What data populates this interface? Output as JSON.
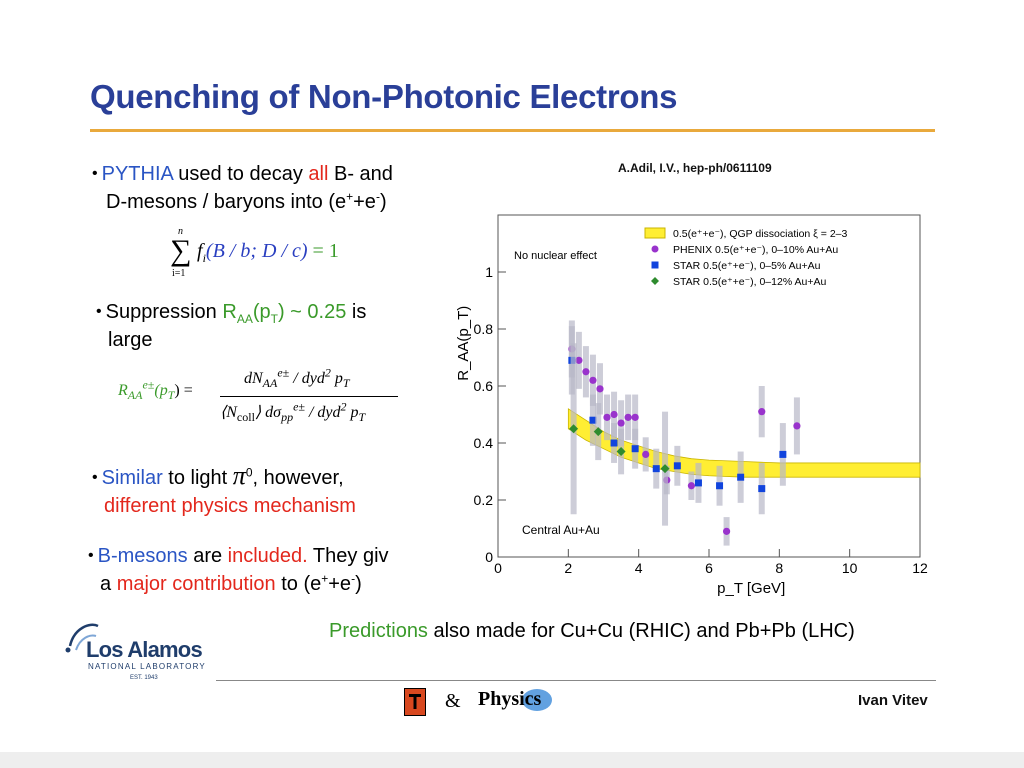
{
  "slide": {
    "title": "Quenching of Non-Photonic Electrons",
    "bullets": {
      "b1": {
        "part1": "PYTHIA",
        "part2": " used to decay ",
        "part3": "all",
        "part4": " B- and",
        "line2": "D-mesons / baryons into (e",
        "line2_sup1": "+",
        "line2_mid": "+e",
        "line2_sup2": "-",
        "line2_end": ")"
      },
      "b2": {
        "part1": "Suppression ",
        "raa": "R",
        "raa_sub": "AA",
        "pt_open": "(p",
        "pt_sub": "T",
        "pt_close": ") ~ 0.25",
        "part_end": " is",
        "line2": "large"
      },
      "b3": {
        "part1": "Similar",
        "part2": " to light ",
        "pi": "π",
        "pi_sup": "0",
        "part3": ", however,",
        "line2": "different physics mechanism"
      },
      "b4": {
        "part1": "B-mesons",
        "part2": " are ",
        "part3": "included.",
        "part4": " They giv",
        "line2a": "a ",
        "line2b": "major contribution",
        "line2c": " to (e",
        "sup1": "+",
        "mid": "+e",
        "sup2": "-",
        "end": ")"
      }
    },
    "eq1": {
      "sum_top": "n",
      "sum_sign": "∑",
      "sum_bottom": "i=1",
      "body": "f",
      "body_sub": "i",
      "args": "(B / b; D / c)",
      "rhs": " = 1"
    },
    "eq2": {
      "lhs": "R",
      "lhs_sub": "AA",
      "lhs_sup": "e±",
      "lhs_arg": "(p",
      "lhs_arg_sub": "T",
      "lhs_close": ") =",
      "num": "dN",
      "num_sub": "AA",
      "num_sup": "e±",
      "num_rest": " / dyd",
      "num_sq": "2",
      "num_p": " p",
      "num_p_sub": "T",
      "den_open": "⟨N",
      "den_sub": "coll",
      "den_close": "⟩ dσ",
      "den_sigma_sub": "pp",
      "den_sigma_sup": "e±",
      "den_rest": " / dyd",
      "den_sq": "2",
      "den_p": " p",
      "den_p_sub": "T"
    },
    "credit": "A.Adil, I.V., hep-ph/0611109",
    "predictions": {
      "part1": "Predictions",
      "part2": " also made for Cu+Cu (RHIC) and Pb+Pb (LHC)"
    },
    "author": "Ivan Vitev",
    "footer": {
      "lanl_name": "Los Alamos",
      "lanl_sub": "NATIONAL LABORATORY",
      "lanl_est": "EST. 1943",
      "amp": "&",
      "physics_logo": "Physics"
    }
  },
  "chart_data": {
    "type": "scatter",
    "xlabel": "p_T [GeV]",
    "ylabel": "R_AA(p_T)",
    "xlim": [
      0,
      12
    ],
    "ylim": [
      0,
      1.2
    ],
    "xticks": [
      0,
      2,
      4,
      6,
      8,
      10,
      12
    ],
    "yticks": [
      0,
      0.2,
      0.4,
      0.6,
      0.8,
      1
    ],
    "annotations": [
      "No nuclear effect",
      "Central Au+Au"
    ],
    "legend_position": "top-right",
    "series": [
      {
        "name": "0.5(e⁺+e⁻), QGP dissociation ξ = 2–3",
        "kind": "band",
        "color": "#ffee33",
        "x": [
          2.0,
          2.5,
          3.0,
          3.5,
          4.0,
          4.5,
          5.0,
          5.5,
          6.0,
          7.0,
          8.0,
          9.0,
          10.0,
          12.0
        ],
        "lower": [
          0.45,
          0.41,
          0.38,
          0.35,
          0.33,
          0.31,
          0.3,
          0.29,
          0.285,
          0.28,
          0.28,
          0.28,
          0.28,
          0.28
        ],
        "upper": [
          0.52,
          0.48,
          0.44,
          0.41,
          0.39,
          0.37,
          0.355,
          0.345,
          0.34,
          0.335,
          0.33,
          0.33,
          0.33,
          0.33
        ]
      },
      {
        "name": "PHENIX 0.5(e⁺+e⁻), 0–10% Au+Au",
        "kind": "points",
        "marker": "circle",
        "color": "#9933cc",
        "x": [
          2.1,
          2.3,
          2.5,
          2.7,
          2.9,
          3.1,
          3.3,
          3.5,
          3.7,
          3.9,
          4.2,
          4.8,
          5.5,
          6.5,
          7.5,
          8.5
        ],
        "y": [
          0.73,
          0.69,
          0.65,
          0.62,
          0.59,
          0.49,
          0.5,
          0.47,
          0.49,
          0.49,
          0.36,
          0.27,
          0.25,
          0.09,
          0.51,
          0.46
        ],
        "err": [
          0.1,
          0.1,
          0.09,
          0.09,
          0.09,
          0.08,
          0.08,
          0.08,
          0.08,
          0.08,
          0.06,
          0.05,
          0.05,
          0.05,
          0.09,
          0.1
        ]
      },
      {
        "name": "STAR 0.5(e⁺+e⁻), 0–5% Au+Au",
        "kind": "points",
        "marker": "square",
        "color": "#1144dd",
        "x": [
          2.1,
          2.7,
          3.3,
          3.9,
          4.5,
          5.1,
          5.7,
          6.3,
          6.9,
          7.5,
          8.1
        ],
        "y": [
          0.69,
          0.48,
          0.4,
          0.38,
          0.31,
          0.32,
          0.26,
          0.25,
          0.28,
          0.24,
          0.36
        ],
        "err": [
          0.12,
          0.09,
          0.07,
          0.07,
          0.07,
          0.07,
          0.07,
          0.07,
          0.09,
          0.09,
          0.11
        ]
      },
      {
        "name": "STAR 0.5(e⁺+e⁻), 0–12% Au+Au",
        "kind": "points",
        "marker": "diamond",
        "color": "#2e8b2e",
        "x": [
          2.15,
          2.85,
          3.5,
          4.75
        ],
        "y": [
          0.45,
          0.44,
          0.37,
          0.31
        ],
        "err": [
          0.3,
          0.1,
          0.08,
          0.2
        ]
      }
    ]
  }
}
